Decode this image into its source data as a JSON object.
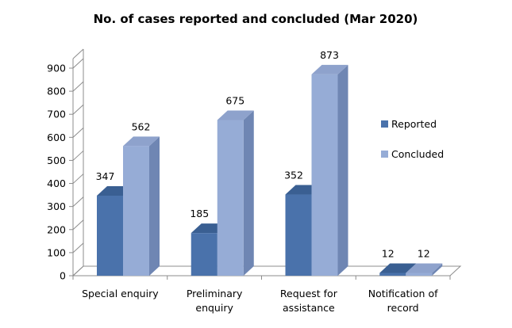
{
  "chart_data": {
    "type": "bar",
    "title": "No. of cases reported and concluded (Mar 2020)",
    "categories": [
      [
        "Special enquiry"
      ],
      [
        "Preliminary",
        "enquiry"
      ],
      [
        "Request for",
        "assistance"
      ],
      [
        "Notification of",
        "record"
      ]
    ],
    "series": [
      {
        "name": "Reported",
        "values": [
          347,
          185,
          352,
          12
        ]
      },
      {
        "name": "Concluded",
        "values": [
          562,
          675,
          873,
          12
        ]
      }
    ],
    "ylim": [
      0,
      900
    ],
    "yticks": [
      "0",
      "100",
      "200",
      "300",
      "400",
      "500",
      "600",
      "700",
      "800",
      "900"
    ],
    "grid": false,
    "legend_position": "right",
    "style": "3d-clustered-column",
    "colors": {
      "Reported": {
        "front": "#4a72ab",
        "side": "#34547f",
        "top": "#3a5f92"
      },
      "Concluded": {
        "front": "#96acd6",
        "side": "#6f86b3",
        "top": "#8ea2cc"
      },
      "frame": "#8c8c8c"
    }
  }
}
